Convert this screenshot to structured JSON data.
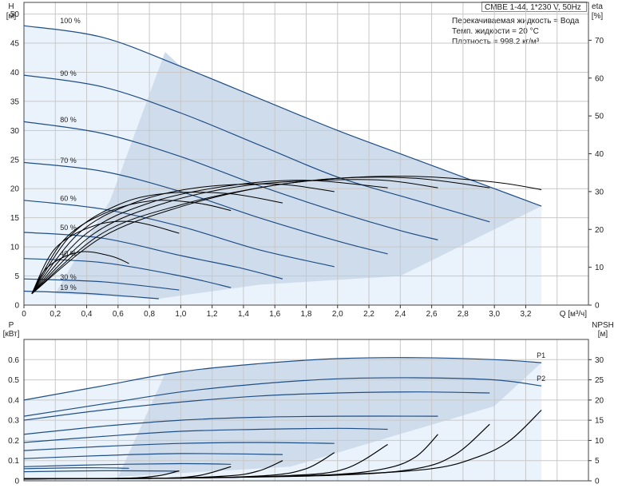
{
  "header": {
    "title": "CMBE 1-44, 1*230 V, 50Hz",
    "fluid_line": "Перекачиваемая жидкость = Вода",
    "temp_line": "Темп. жидкости = 20 °C",
    "density_line": "Плотность = 998.2 кг/м³"
  },
  "colors": {
    "grid": "#c8c8c8",
    "curve": "#1f4e86",
    "area_light": "#eaf3fc",
    "area_mid": "#cfdceb",
    "eta": "#000000"
  },
  "chart_data": [
    {
      "type": "line",
      "id": "top",
      "xlabel": "Q [м³/ч]",
      "ylabel": "H",
      "ylabel_unit": "[м]",
      "y2label": "eta",
      "y2label_unit": "[%]",
      "xlim": [
        0,
        3.6
      ],
      "ylim": [
        0,
        52
      ],
      "y2lim": [
        0,
        80
      ],
      "x_ticks": [
        "0",
        "0,2",
        "0,4",
        "0,6",
        "0,8",
        "1,0",
        "1,2",
        "1,4",
        "1,6",
        "1,8",
        "2,0",
        "2,2",
        "2,4",
        "2,6",
        "2,8",
        "3,0",
        "3,2"
      ],
      "y_ticks": [
        "0",
        "5",
        "10",
        "15",
        "20",
        "25",
        "30",
        "35",
        "40",
        "45",
        "50"
      ],
      "y2_ticks": [
        "0",
        "10",
        "20",
        "30",
        "40",
        "50",
        "60",
        "70"
      ],
      "grid": true,
      "series": [
        {
          "name": "100 %",
          "label_at": [
            0.2,
            48
          ],
          "x": [
            0,
            0.5,
            1.0,
            1.5,
            2.0,
            2.5,
            3.0,
            3.3
          ],
          "y": [
            48,
            46,
            41,
            35.5,
            30,
            25,
            20,
            17
          ]
        },
        {
          "name": "90 %",
          "label_at": [
            0.2,
            39
          ],
          "x": [
            0,
            0.5,
            1.0,
            1.5,
            2.0,
            2.5,
            2.97
          ],
          "y": [
            39.5,
            37.5,
            33,
            27.5,
            22,
            18,
            14.3
          ]
        },
        {
          "name": "80 %",
          "label_at": [
            0.2,
            31
          ],
          "x": [
            0,
            0.5,
            1.0,
            1.5,
            2.0,
            2.4,
            2.64
          ],
          "y": [
            31.5,
            29.5,
            25.5,
            20.5,
            16,
            12.8,
            11.2
          ]
        },
        {
          "name": "70 %",
          "label_at": [
            0.2,
            24
          ],
          "x": [
            0,
            0.5,
            1.0,
            1.5,
            2.0,
            2.32
          ],
          "y": [
            24.5,
            23,
            19.5,
            15,
            11,
            8.8
          ]
        },
        {
          "name": "60 %",
          "label_at": [
            0.2,
            17.5
          ],
          "x": [
            0,
            0.5,
            1.0,
            1.5,
            1.98
          ],
          "y": [
            18,
            16.5,
            13.5,
            9.5,
            6.6
          ]
        },
        {
          "name": "50 %",
          "label_at": [
            0.2,
            12.5
          ],
          "x": [
            0,
            0.5,
            1.0,
            1.36,
            1.65
          ],
          "y": [
            12.5,
            11.5,
            8.5,
            6.5,
            4.5
          ]
        },
        {
          "name": "40 %",
          "label_at": [
            0.2,
            8
          ],
          "x": [
            0,
            0.5,
            1.0,
            1.32
          ],
          "y": [
            8,
            7.3,
            5,
            3
          ]
        },
        {
          "name": "30 %",
          "label_at": [
            0.2,
            4
          ],
          "x": [
            0,
            0.5,
            0.99
          ],
          "y": [
            4.5,
            4,
            2.6
          ]
        },
        {
          "name": "19 %",
          "label_at": [
            0.2,
            2.2
          ],
          "x": [
            0,
            0.4,
            0.86
          ],
          "y": [
            2.4,
            2,
            1.1
          ]
        }
      ],
      "eta_curves": [
        {
          "x": [
            0.05,
            0.5,
            1.0,
            1.5,
            2.0,
            2.5,
            3.0,
            3.3
          ],
          "y": [
            3,
            18,
            26,
            31,
            33.5,
            34,
            32.5,
            30.5
          ]
        },
        {
          "x": [
            0.05,
            0.5,
            1.0,
            1.5,
            2.0,
            2.5,
            2.97
          ],
          "y": [
            3,
            19,
            26.5,
            31,
            33.5,
            33.5,
            31
          ]
        },
        {
          "x": [
            0.05,
            0.45,
            0.9,
            1.4,
            1.9,
            2.3,
            2.64
          ],
          "y": [
            3,
            19,
            27,
            31.5,
            33,
            33,
            31
          ]
        },
        {
          "x": [
            0.05,
            0.4,
            0.8,
            1.3,
            1.8,
            2.32
          ],
          "y": [
            3,
            19,
            27,
            31.5,
            33,
            31
          ]
        },
        {
          "x": [
            0.05,
            0.35,
            0.7,
            1.1,
            1.6,
            1.98
          ],
          "y": [
            3,
            19,
            27,
            31,
            32,
            30
          ]
        },
        {
          "x": [
            0.05,
            0.3,
            0.6,
            0.9,
            1.3,
            1.65
          ],
          "y": [
            3,
            18.5,
            26.5,
            29.5,
            29.5,
            27
          ]
        },
        {
          "x": [
            0.05,
            0.25,
            0.5,
            0.8,
            1.1,
            1.32
          ],
          "y": [
            3,
            17,
            24,
            27.5,
            27,
            25
          ]
        },
        {
          "x": [
            0.05,
            0.2,
            0.45,
            0.7,
            0.99
          ],
          "y": [
            3,
            15,
            21,
            22,
            19
          ]
        },
        {
          "x": [
            0.05,
            0.15,
            0.35,
            0.55,
            0.67
          ],
          "y": [
            3,
            10,
            14,
            13,
            11
          ]
        }
      ]
    },
    {
      "type": "line",
      "id": "bottom",
      "ylabel": "P",
      "ylabel_unit": "[кВт]",
      "y2label": "NPSH",
      "y2label_unit": "[м]",
      "xlim": [
        0,
        3.6
      ],
      "ylim": [
        0,
        0.7
      ],
      "y2lim": [
        0,
        35
      ],
      "y_ticks": [
        "0",
        "0.1",
        "0.2",
        "0.3",
        "0.4",
        "0.5",
        "0.6"
      ],
      "y2_ticks": [
        "0",
        "5",
        "10",
        "15",
        "20",
        "25",
        "30"
      ],
      "grid": true,
      "series": [
        {
          "name": "P1",
          "x": [
            0,
            0.5,
            1.0,
            1.5,
            2.0,
            2.5,
            3.0,
            3.3
          ],
          "y": [
            0.4,
            0.47,
            0.54,
            0.58,
            0.605,
            0.61,
            0.6,
            0.585
          ]
        },
        {
          "name": "P2",
          "x": [
            0,
            0.5,
            1.0,
            1.5,
            2.0,
            2.5,
            3.0,
            3.3
          ],
          "y": [
            0.32,
            0.38,
            0.44,
            0.48,
            0.505,
            0.51,
            0.5,
            0.47
          ]
        },
        {
          "x": [
            0,
            0.5,
            1.0,
            1.5,
            2.0,
            2.5,
            2.97
          ],
          "y": [
            0.3,
            0.35,
            0.39,
            0.42,
            0.435,
            0.44,
            0.435
          ]
        },
        {
          "x": [
            0,
            0.5,
            1.0,
            1.5,
            2.0,
            2.64
          ],
          "y": [
            0.23,
            0.27,
            0.3,
            0.315,
            0.32,
            0.32
          ]
        },
        {
          "x": [
            0,
            0.5,
            1.0,
            1.5,
            2.0,
            2.32
          ],
          "y": [
            0.19,
            0.22,
            0.245,
            0.255,
            0.26,
            0.255
          ]
        },
        {
          "x": [
            0,
            0.5,
            1.0,
            1.5,
            1.98
          ],
          "y": [
            0.15,
            0.17,
            0.185,
            0.19,
            0.185
          ]
        },
        {
          "x": [
            0,
            0.5,
            1.0,
            1.65
          ],
          "y": [
            0.11,
            0.125,
            0.135,
            0.13
          ]
        },
        {
          "x": [
            0,
            0.5,
            1.0,
            1.32
          ],
          "y": [
            0.07,
            0.08,
            0.085,
            0.082
          ]
        },
        {
          "x": [
            0,
            0.5,
            0.99
          ],
          "y": [
            0.045,
            0.05,
            0.048
          ]
        },
        {
          "x": [
            0,
            0.4,
            0.67
          ],
          "y": [
            0.06,
            0.065,
            0.062
          ]
        }
      ],
      "npsh_curves": [
        {
          "x": [
            0.0,
            1.0,
            2.0,
            2.6,
            2.9,
            3.1,
            3.3
          ],
          "y": [
            0.5,
            0.7,
            1.5,
            3,
            6,
            10,
            17.5
          ]
        },
        {
          "x": [
            0.0,
            1.0,
            2.0,
            2.5,
            2.75,
            2.97
          ],
          "y": [
            0.5,
            0.7,
            1.4,
            3,
            6.5,
            14
          ]
        },
        {
          "x": [
            0.0,
            1.0,
            1.9,
            2.3,
            2.5,
            2.64
          ],
          "y": [
            0.5,
            0.7,
            1.4,
            3,
            6,
            11.5
          ]
        },
        {
          "x": [
            0.0,
            1.0,
            1.7,
            2.05,
            2.32
          ],
          "y": [
            0.5,
            0.7,
            1.3,
            3,
            9
          ]
        },
        {
          "x": [
            0.0,
            1.0,
            1.55,
            1.8,
            1.98
          ],
          "y": [
            0.5,
            0.7,
            1.3,
            3,
            7
          ]
        },
        {
          "x": [
            0.0,
            0.8,
            1.3,
            1.5,
            1.65
          ],
          "y": [
            0.5,
            0.6,
            1.2,
            2.5,
            5
          ]
        },
        {
          "x": [
            0.0,
            0.8,
            1.1,
            1.32
          ],
          "y": [
            0.5,
            0.6,
            1.2,
            3.5
          ]
        },
        {
          "x": [
            0.0,
            0.6,
            0.85,
            0.99
          ],
          "y": [
            0.5,
            0.6,
            1.2,
            2.5
          ]
        }
      ]
    }
  ]
}
